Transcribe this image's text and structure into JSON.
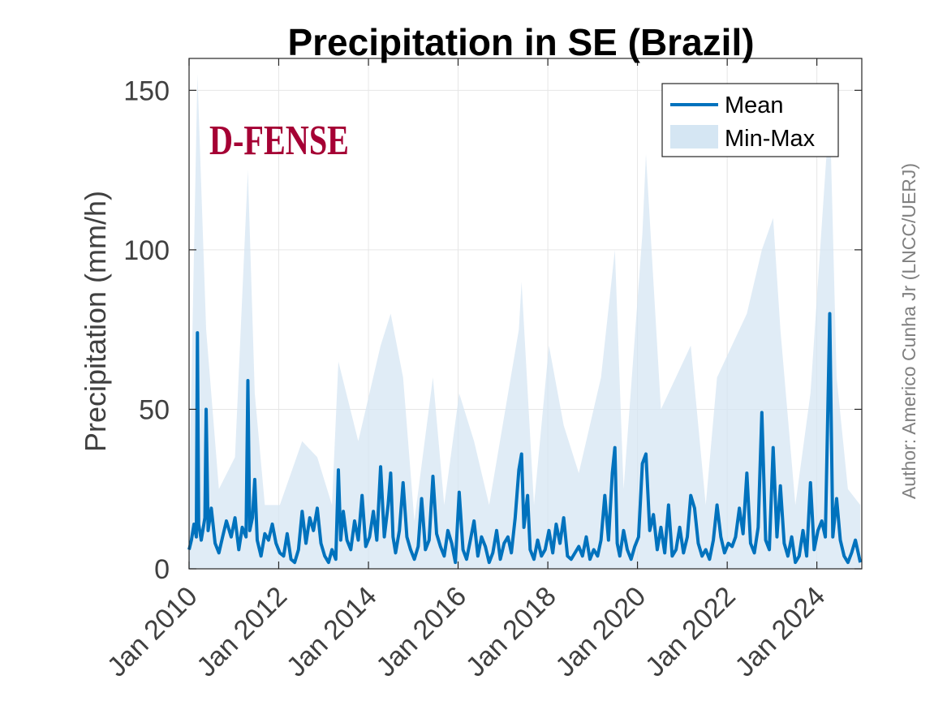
{
  "title": "Precipitation in SE (Brazil)",
  "logo_text": "D-FENSE",
  "author": "Author: Americo Cunha Jr (LNCC/UERJ)",
  "colors": {
    "mean": "#0072bd",
    "band": "#d5e6f3",
    "logo": "#a50034",
    "grid": "#e6e6e6",
    "axis": "#262626"
  },
  "chart_data": {
    "type": "line",
    "title": "Precipitation in SE (Brazil)",
    "xlabel": "",
    "ylabel": "Precipitation (mm/h)",
    "xlim": [
      "2010-01-01",
      "2025-01-01"
    ],
    "ylim": [
      0,
      160
    ],
    "xticks": [
      {
        "date": "2010-01-01",
        "label": "Jan 2010"
      },
      {
        "date": "2012-01-01",
        "label": "Jan 2012"
      },
      {
        "date": "2014-01-01",
        "label": "Jan 2014"
      },
      {
        "date": "2016-01-01",
        "label": "Jan 2016"
      },
      {
        "date": "2018-01-01",
        "label": "Jan 2018"
      },
      {
        "date": "2020-01-01",
        "label": "Jan 2020"
      },
      {
        "date": "2022-01-01",
        "label": "Jan 2022"
      },
      {
        "date": "2024-01-01",
        "label": "Jan 2024"
      }
    ],
    "yticks": [
      0,
      50,
      100,
      150
    ],
    "grid": true,
    "legend_position": "top-right",
    "series": [
      {
        "name": "Mean",
        "style": "line",
        "points": [
          [
            "2010-01-01",
            6
          ],
          [
            "2010-01-20",
            9
          ],
          [
            "2010-02-10",
            14
          ],
          [
            "2010-03-01",
            10
          ],
          [
            "2010-03-10",
            74
          ],
          [
            "2010-03-20",
            14
          ],
          [
            "2010-04-10",
            9
          ],
          [
            "2010-05-10",
            16
          ],
          [
            "2010-05-20",
            50
          ],
          [
            "2010-06-05",
            12
          ],
          [
            "2010-07-01",
            19
          ],
          [
            "2010-08-01",
            8
          ],
          [
            "2010-09-01",
            5
          ],
          [
            "2010-10-01",
            10
          ],
          [
            "2010-11-01",
            15
          ],
          [
            "2010-12-10",
            10
          ],
          [
            "2011-01-10",
            16
          ],
          [
            "2011-02-10",
            6
          ],
          [
            "2011-03-10",
            13
          ],
          [
            "2011-04-10",
            10
          ],
          [
            "2011-04-25",
            59
          ],
          [
            "2011-05-10",
            12
          ],
          [
            "2011-06-01",
            16
          ],
          [
            "2011-06-20",
            28
          ],
          [
            "2011-07-10",
            9
          ],
          [
            "2011-08-10",
            4
          ],
          [
            "2011-09-10",
            11
          ],
          [
            "2011-10-10",
            9
          ],
          [
            "2011-11-10",
            14
          ],
          [
            "2011-12-10",
            8
          ],
          [
            "2012-01-10",
            5
          ],
          [
            "2012-02-10",
            4
          ],
          [
            "2012-03-10",
            11
          ],
          [
            "2012-04-10",
            3
          ],
          [
            "2012-05-10",
            2
          ],
          [
            "2012-06-10",
            6
          ],
          [
            "2012-07-10",
            18
          ],
          [
            "2012-08-10",
            8
          ],
          [
            "2012-09-10",
            16
          ],
          [
            "2012-10-10",
            12
          ],
          [
            "2012-11-10",
            19
          ],
          [
            "2012-12-10",
            8
          ],
          [
            "2013-01-10",
            4
          ],
          [
            "2013-02-10",
            2
          ],
          [
            "2013-03-10",
            6
          ],
          [
            "2013-04-10",
            3
          ],
          [
            "2013-05-01",
            31
          ],
          [
            "2013-05-20",
            9
          ],
          [
            "2013-06-10",
            18
          ],
          [
            "2013-07-10",
            9
          ],
          [
            "2013-08-10",
            6
          ],
          [
            "2013-09-10",
            15
          ],
          [
            "2013-10-10",
            9
          ],
          [
            "2013-11-10",
            23
          ],
          [
            "2013-12-10",
            7
          ],
          [
            "2014-01-10",
            10
          ],
          [
            "2014-02-10",
            18
          ],
          [
            "2014-03-10",
            9
          ],
          [
            "2014-04-10",
            32
          ],
          [
            "2014-05-10",
            10
          ],
          [
            "2014-06-10",
            20
          ],
          [
            "2014-07-01",
            30
          ],
          [
            "2014-07-20",
            10
          ],
          [
            "2014-08-10",
            5
          ],
          [
            "2014-09-10",
            12
          ],
          [
            "2014-10-10",
            27
          ],
          [
            "2014-11-10",
            10
          ],
          [
            "2014-12-10",
            6
          ],
          [
            "2015-01-10",
            3
          ],
          [
            "2015-02-10",
            7
          ],
          [
            "2015-03-10",
            22
          ],
          [
            "2015-04-10",
            6
          ],
          [
            "2015-05-10",
            9
          ],
          [
            "2015-06-10",
            29
          ],
          [
            "2015-07-10",
            11
          ],
          [
            "2015-08-10",
            7
          ],
          [
            "2015-09-10",
            4
          ],
          [
            "2015-10-10",
            12
          ],
          [
            "2015-11-10",
            8
          ],
          [
            "2015-12-10",
            2
          ],
          [
            "2016-01-10",
            24
          ],
          [
            "2016-02-10",
            6
          ],
          [
            "2016-03-10",
            3
          ],
          [
            "2016-04-10",
            9
          ],
          [
            "2016-05-10",
            15
          ],
          [
            "2016-06-10",
            4
          ],
          [
            "2016-07-10",
            10
          ],
          [
            "2016-08-10",
            7
          ],
          [
            "2016-09-10",
            2
          ],
          [
            "2016-10-10",
            5
          ],
          [
            "2016-11-10",
            12
          ],
          [
            "2016-12-10",
            3
          ],
          [
            "2017-01-10",
            8
          ],
          [
            "2017-02-10",
            10
          ],
          [
            "2017-03-10",
            5
          ],
          [
            "2017-04-10",
            16
          ],
          [
            "2017-05-10",
            31
          ],
          [
            "2017-06-01",
            36
          ],
          [
            "2017-06-20",
            13
          ],
          [
            "2017-07-20",
            23
          ],
          [
            "2017-08-10",
            6
          ],
          [
            "2017-09-10",
            3
          ],
          [
            "2017-10-10",
            9
          ],
          [
            "2017-11-10",
            4
          ],
          [
            "2017-12-10",
            6
          ],
          [
            "2018-01-10",
            12
          ],
          [
            "2018-02-10",
            5
          ],
          [
            "2018-03-10",
            14
          ],
          [
            "2018-04-10",
            8
          ],
          [
            "2018-05-10",
            16
          ],
          [
            "2018-06-10",
            4
          ],
          [
            "2018-07-10",
            3
          ],
          [
            "2018-08-10",
            5
          ],
          [
            "2018-09-10",
            7
          ],
          [
            "2018-10-10",
            4
          ],
          [
            "2018-11-10",
            10
          ],
          [
            "2018-12-10",
            3
          ],
          [
            "2019-01-10",
            6
          ],
          [
            "2019-02-10",
            4
          ],
          [
            "2019-03-10",
            9
          ],
          [
            "2019-04-10",
            23
          ],
          [
            "2019-05-10",
            9
          ],
          [
            "2019-06-10",
            30
          ],
          [
            "2019-07-01",
            38
          ],
          [
            "2019-07-20",
            8
          ],
          [
            "2019-08-10",
            4
          ],
          [
            "2019-09-10",
            12
          ],
          [
            "2019-10-10",
            6
          ],
          [
            "2019-11-10",
            3
          ],
          [
            "2019-12-10",
            7
          ],
          [
            "2020-01-10",
            10
          ],
          [
            "2020-02-10",
            33
          ],
          [
            "2020-03-10",
            36
          ],
          [
            "2020-04-10",
            12
          ],
          [
            "2020-05-10",
            17
          ],
          [
            "2020-06-10",
            6
          ],
          [
            "2020-07-10",
            13
          ],
          [
            "2020-08-10",
            5
          ],
          [
            "2020-09-10",
            20
          ],
          [
            "2020-10-10",
            4
          ],
          [
            "2020-11-10",
            6
          ],
          [
            "2020-12-10",
            13
          ],
          [
            "2021-01-10",
            5
          ],
          [
            "2021-02-10",
            10
          ],
          [
            "2021-03-10",
            23
          ],
          [
            "2021-04-10",
            19
          ],
          [
            "2021-05-10",
            8
          ],
          [
            "2021-06-10",
            4
          ],
          [
            "2021-07-10",
            6
          ],
          [
            "2021-08-10",
            3
          ],
          [
            "2021-09-10",
            9
          ],
          [
            "2021-10-10",
            20
          ],
          [
            "2021-11-10",
            10
          ],
          [
            "2021-12-10",
            5
          ],
          [
            "2022-01-10",
            8
          ],
          [
            "2022-02-10",
            7
          ],
          [
            "2022-03-10",
            10
          ],
          [
            "2022-04-10",
            19
          ],
          [
            "2022-05-10",
            11
          ],
          [
            "2022-06-10",
            30
          ],
          [
            "2022-07-10",
            8
          ],
          [
            "2022-08-10",
            5
          ],
          [
            "2022-09-10",
            13
          ],
          [
            "2022-10-10",
            49
          ],
          [
            "2022-11-10",
            9
          ],
          [
            "2022-12-10",
            6
          ],
          [
            "2023-01-10",
            38
          ],
          [
            "2023-02-10",
            10
          ],
          [
            "2023-03-10",
            26
          ],
          [
            "2023-04-10",
            8
          ],
          [
            "2023-05-10",
            4
          ],
          [
            "2023-06-10",
            10
          ],
          [
            "2023-07-10",
            2
          ],
          [
            "2023-08-10",
            4
          ],
          [
            "2023-09-10",
            12
          ],
          [
            "2023-10-10",
            4
          ],
          [
            "2023-11-10",
            27
          ],
          [
            "2023-12-10",
            6
          ],
          [
            "2024-01-10",
            12
          ],
          [
            "2024-02-10",
            15
          ],
          [
            "2024-03-10",
            10
          ],
          [
            "2024-04-15",
            80
          ],
          [
            "2024-05-10",
            10
          ],
          [
            "2024-06-10",
            22
          ],
          [
            "2024-07-10",
            9
          ],
          [
            "2024-08-10",
            4
          ],
          [
            "2024-09-10",
            2
          ],
          [
            "2024-10-10",
            5
          ],
          [
            "2024-11-10",
            9
          ],
          [
            "2024-12-20",
            2
          ]
        ]
      },
      {
        "name": "Min-Max",
        "style": "band",
        "points": [
          [
            "2010-01-01",
            0,
            20
          ],
          [
            "2010-03-10",
            0,
            155
          ],
          [
            "2010-05-20",
            0,
            75
          ],
          [
            "2010-09-01",
            0,
            25
          ],
          [
            "2011-01-10",
            0,
            35
          ],
          [
            "2011-04-25",
            0,
            125
          ],
          [
            "2011-06-20",
            0,
            55
          ],
          [
            "2011-09-10",
            0,
            20
          ],
          [
            "2012-01-10",
            0,
            20
          ],
          [
            "2012-07-10",
            0,
            40
          ],
          [
            "2012-11-10",
            0,
            35
          ],
          [
            "2013-03-10",
            0,
            20
          ],
          [
            "2013-05-01",
            0,
            65
          ],
          [
            "2013-10-10",
            0,
            40
          ],
          [
            "2014-04-10",
            0,
            70
          ],
          [
            "2014-07-01",
            0,
            80
          ],
          [
            "2014-10-10",
            0,
            60
          ],
          [
            "2015-01-10",
            0,
            15
          ],
          [
            "2015-06-10",
            0,
            60
          ],
          [
            "2015-09-10",
            0,
            20
          ],
          [
            "2016-01-10",
            0,
            55
          ],
          [
            "2016-05-10",
            0,
            40
          ],
          [
            "2016-09-10",
            0,
            20
          ],
          [
            "2017-05-10",
            0,
            75
          ],
          [
            "2017-06-01",
            0,
            90
          ],
          [
            "2017-09-10",
            0,
            20
          ],
          [
            "2018-01-10",
            0,
            70
          ],
          [
            "2018-05-10",
            0,
            45
          ],
          [
            "2018-09-10",
            0,
            30
          ],
          [
            "2019-03-10",
            0,
            60
          ],
          [
            "2019-07-01",
            0,
            100
          ],
          [
            "2019-09-10",
            0,
            25
          ],
          [
            "2020-02-10",
            0,
            105
          ],
          [
            "2020-03-10",
            0,
            130
          ],
          [
            "2020-07-10",
            0,
            50
          ],
          [
            "2021-03-10",
            0,
            70
          ],
          [
            "2021-07-10",
            0,
            20
          ],
          [
            "2021-10-10",
            0,
            60
          ],
          [
            "2022-06-10",
            0,
            80
          ],
          [
            "2022-10-10",
            0,
            100
          ],
          [
            "2023-01-10",
            0,
            110
          ],
          [
            "2023-03-10",
            0,
            75
          ],
          [
            "2023-07-10",
            0,
            20
          ],
          [
            "2023-11-10",
            0,
            55
          ],
          [
            "2024-04-15",
            0,
            145
          ],
          [
            "2024-06-10",
            0,
            60
          ],
          [
            "2024-09-10",
            0,
            25
          ],
          [
            "2024-12-20",
            0,
            20
          ]
        ]
      }
    ]
  }
}
